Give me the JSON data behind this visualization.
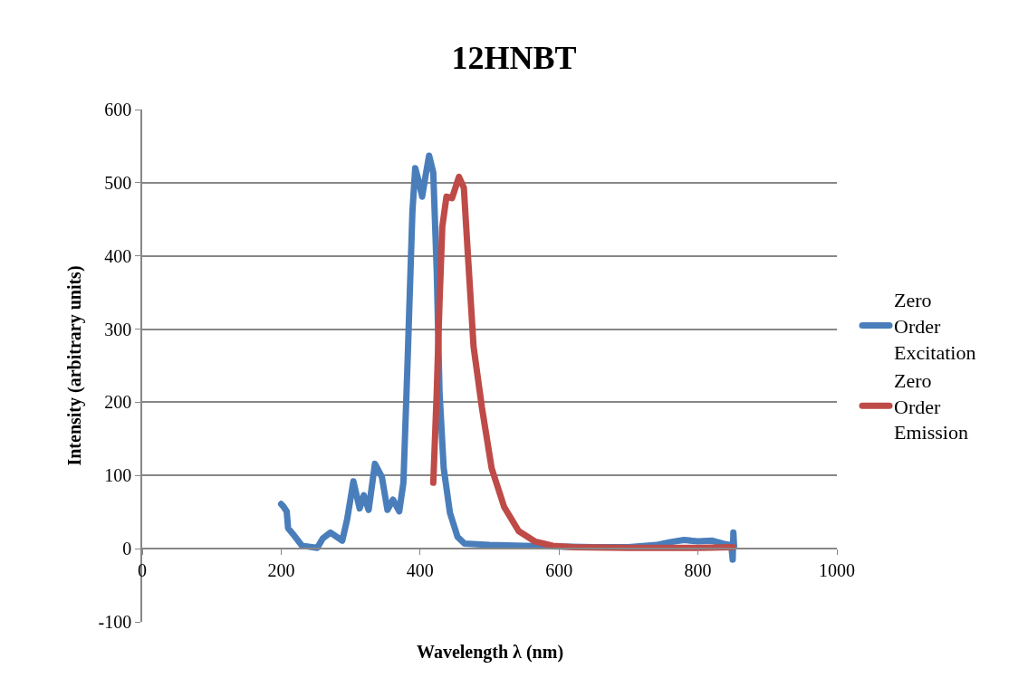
{
  "chart_data": {
    "type": "line",
    "title": "12HNBT",
    "xlabel": "Wavelength λ (nm)",
    "ylabel": "Intensity (arbitrary units)",
    "xlim": [
      0,
      1000
    ],
    "xticks": [
      0,
      200,
      400,
      600,
      800,
      1000
    ],
    "ylim": [
      -100,
      600
    ],
    "yticks": [
      -100,
      0,
      100,
      200,
      300,
      400,
      500,
      600
    ],
    "grid": "y",
    "legend": "right",
    "marker": "none",
    "line_style": "solid",
    "series": [
      {
        "name": "Zero Order Excitation",
        "color": "#4a7ebb",
        "x": [
          200,
          203,
          208,
          210,
          217,
          230,
          252,
          260,
          271,
          288,
          295,
          304,
          313,
          319,
          326,
          335,
          345,
          353,
          361,
          370,
          376,
          382,
          389,
          393,
          398,
          403,
          408,
          413,
          419,
          424,
          428,
          434,
          443,
          454,
          464,
          500,
          550,
          600,
          650,
          700,
          740,
          760,
          780,
          800,
          820,
          840,
          848,
          850,
          851,
          852
        ],
        "values": [
          61,
          58,
          51,
          28,
          20,
          4,
          1,
          14,
          22,
          11,
          40,
          92,
          55,
          73,
          53,
          116,
          98,
          53,
          67,
          51,
          90,
          255,
          461,
          520,
          502,
          481,
          510,
          537,
          514,
          378,
          214,
          110,
          49,
          16,
          7,
          5,
          4,
          3,
          2,
          2,
          5,
          9,
          12,
          10,
          11,
          6,
          5,
          -15,
          22,
          3
        ]
      },
      {
        "name": "Zero Order Emission",
        "color": "#be4b48",
        "x": [
          419,
          424,
          428,
          432,
          438,
          446,
          456,
          463,
          469,
          477,
          489,
          503,
          521,
          542,
          565,
          591,
          620,
          700,
          800,
          850
        ],
        "values": [
          90,
          214,
          337,
          440,
          481,
          479,
          508,
          493,
          399,
          276,
          193,
          110,
          57,
          24,
          10,
          4,
          2,
          1,
          1,
          2
        ]
      }
    ]
  }
}
